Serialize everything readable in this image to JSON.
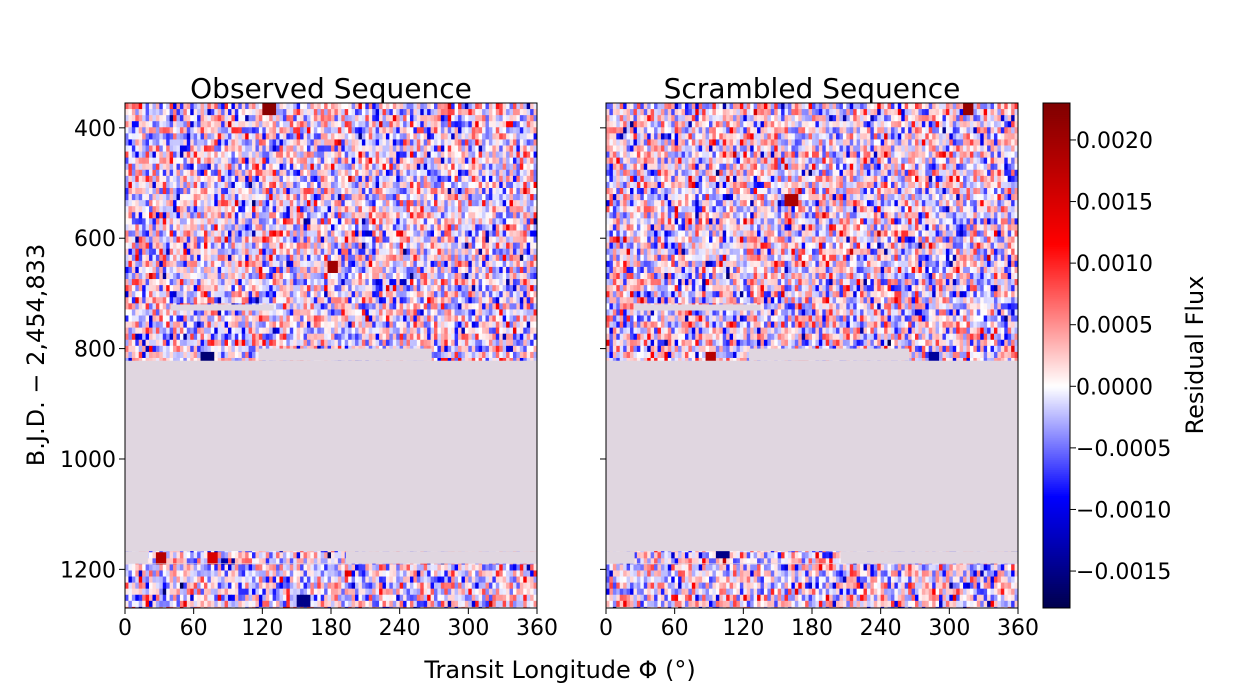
{
  "chart_data": {
    "type": "heatmap",
    "shared_xlabel": "Transit Longitude Φ (°)",
    "ylabel": "B.J.D. − 2,454,833",
    "xlim": [
      0,
      360
    ],
    "ylim": [
      1270,
      355
    ],
    "x_ticks": [
      0,
      60,
      120,
      180,
      240,
      300,
      360
    ],
    "x_tick_labels": [
      "0",
      "60",
      "120",
      "180",
      "240",
      "300",
      "360"
    ],
    "y_ticks": [
      400,
      600,
      800,
      1000,
      1200
    ],
    "y_tick_labels": [
      "400",
      "600",
      "800",
      "1000",
      "1200"
    ],
    "grid": false,
    "panels": [
      {
        "title": "Observed Sequence",
        "seed": 7,
        "gap_fill": "#e0d6e0",
        "gaps": [
          {
            "x0": 0,
            "x1": 360,
            "y0": 822,
            "y1": 1167
          },
          {
            "x0": 0,
            "x1": 20,
            "y0": 1167,
            "y1": 1189
          },
          {
            "x0": 193,
            "x1": 360,
            "y0": 1167,
            "y1": 1189
          },
          {
            "x0": 0,
            "x1": 360,
            "y0": 1189,
            "y1": 1190
          },
          {
            "x0": 40,
            "x1": 130,
            "y0": 720,
            "y1": 731
          },
          {
            "x0": 117,
            "x1": 268,
            "y0": 800,
            "y1": 822
          }
        ],
        "hotspots": [
          {
            "x": 125,
            "y": 365,
            "v": 0.0022
          },
          {
            "x": 180,
            "y": 645,
            "v": 0.002
          },
          {
            "x": 30,
            "y": 1170,
            "v": 0.0018
          },
          {
            "x": 75,
            "y": 1178,
            "v": 0.0015
          },
          {
            "x": 70,
            "y": 812,
            "v": -0.0016
          },
          {
            "x": 155,
            "y": 1250,
            "v": -0.0015
          }
        ]
      },
      {
        "title": "Scrambled Sequence",
        "seed": 23,
        "gap_fill": "#e0d6e0",
        "gaps": [
          {
            "x0": 0,
            "x1": 360,
            "y0": 822,
            "y1": 1167
          },
          {
            "x0": 0,
            "x1": 25,
            "y0": 1167,
            "y1": 1189
          },
          {
            "x0": 205,
            "x1": 360,
            "y0": 1167,
            "y1": 1189
          },
          {
            "x0": 0,
            "x1": 360,
            "y0": 1189,
            "y1": 1190
          },
          {
            "x0": 25,
            "x1": 135,
            "y0": 720,
            "y1": 731
          },
          {
            "x0": 125,
            "x1": 265,
            "y0": 800,
            "y1": 822
          }
        ],
        "hotspots": [
          {
            "x": 315,
            "y": 365,
            "v": 0.0021
          },
          {
            "x": 160,
            "y": 530,
            "v": 0.0019
          },
          {
            "x": 90,
            "y": 810,
            "v": 0.0018
          },
          {
            "x": 100,
            "y": 1168,
            "v": -0.0015
          },
          {
            "x": 285,
            "y": 812,
            "v": -0.0014
          }
        ]
      }
    ],
    "data_summary": {
      "x_bin_width_deg": 3,
      "row_height_days": 11,
      "value_min": -0.0018,
      "value_max": 0.0023,
      "typical_abs_value": 0.0005
    },
    "colorbar": {
      "label": "Residual Flux",
      "colormap": "seismic",
      "vmin": -0.0018,
      "vmax": 0.0023,
      "ticks": [
        0.002,
        0.0015,
        0.001,
        0.0005,
        0.0,
        -0.0005,
        -0.001,
        -0.0015
      ],
      "tick_labels": [
        "0.0020",
        "0.0015",
        "0.0010",
        "0.0005",
        "0.0000",
        "−0.0005",
        "−0.0010",
        "−0.0015"
      ]
    }
  }
}
